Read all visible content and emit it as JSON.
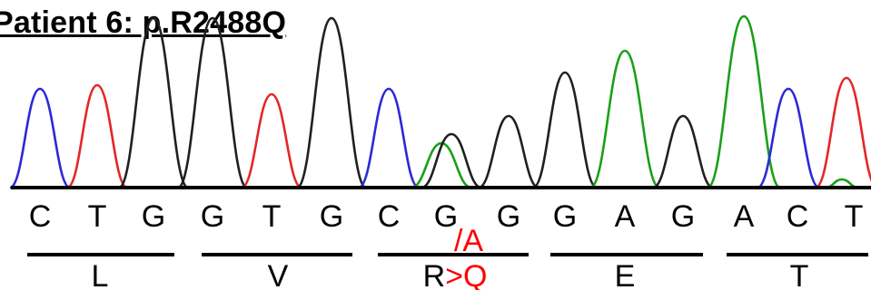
{
  "title": "Patient 6: p.R2488Q",
  "bases": [
    "C",
    "T",
    "G",
    "G",
    "T",
    "G",
    "C",
    "G",
    "G",
    "G",
    "A",
    "G",
    "A",
    "C",
    "T"
  ],
  "alt_base": "/A",
  "codons": [
    {
      "aa": "L"
    },
    {
      "aa": "V"
    },
    {
      "aa_ref": "R",
      "aa_alt": ">Q"
    },
    {
      "aa": "E"
    },
    {
      "aa": "T"
    }
  ],
  "colors": {
    "A": "#19a019",
    "C": "#2a2ad8",
    "G": "#202020",
    "T": "#e22828",
    "mutation": "#ff0000"
  }
}
